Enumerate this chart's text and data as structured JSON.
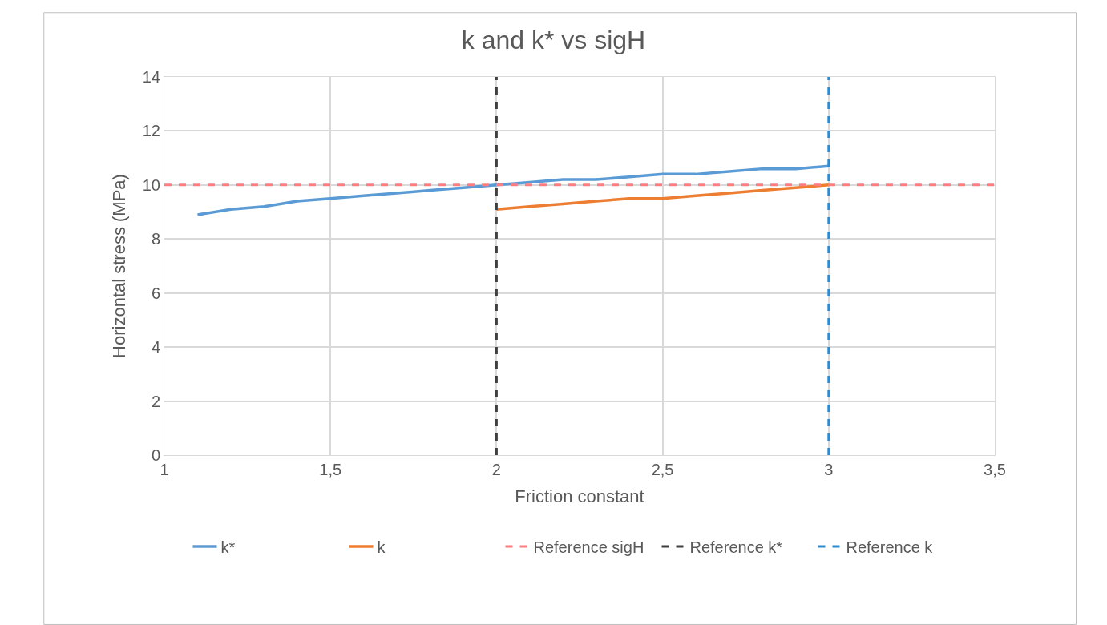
{
  "chart_data": {
    "type": "line",
    "title": "k and k* vs sigH",
    "xlabel": "Friction constant",
    "ylabel": "Horizontal stress (MPa)",
    "series": [
      {
        "name": "k*",
        "color": "#5b9bd5",
        "x": [
          1.1,
          1.2,
          1.3,
          1.4,
          1.5,
          1.6,
          1.7,
          1.8,
          1.9,
          2.0,
          2.1,
          2.2,
          2.3,
          2.4,
          2.5,
          2.6,
          2.7,
          2.8,
          2.9,
          3.0
        ],
        "values": [
          8.9,
          9.1,
          9.2,
          9.4,
          9.5,
          9.6,
          9.7,
          9.8,
          9.9,
          10.0,
          10.1,
          10.2,
          10.2,
          10.3,
          10.4,
          10.4,
          10.5,
          10.6,
          10.6,
          10.7
        ]
      },
      {
        "name": "k",
        "color": "#ed7d31",
        "x": [
          2.0,
          2.1,
          2.2,
          2.3,
          2.4,
          2.5,
          2.6,
          2.7,
          2.8,
          2.9,
          3.0
        ],
        "values": [
          9.1,
          9.2,
          9.3,
          9.4,
          9.5,
          9.5,
          9.6,
          9.7,
          9.8,
          9.9,
          10.0
        ]
      }
    ],
    "ref_lines": [
      {
        "axis": "y",
        "value": 10,
        "label": "Reference sigH",
        "color": "#ff7c80",
        "line_style": "dashed"
      },
      {
        "axis": "x",
        "value": 2,
        "label": "Reference k*",
        "color": "#404040",
        "line_style": "dashed"
      },
      {
        "axis": "x",
        "value": 3,
        "label": "Reference k",
        "color": "#2e8bd0",
        "line_style": "dashed"
      }
    ],
    "xlim": [
      1,
      3.5
    ],
    "xticks": [
      {
        "value": 1,
        "label": "1"
      },
      {
        "value": 1.5,
        "label": "1,5"
      },
      {
        "value": 2,
        "label": "2"
      },
      {
        "value": 2.5,
        "label": "2,5"
      },
      {
        "value": 3,
        "label": "3"
      },
      {
        "value": 3.5,
        "label": "3,5"
      }
    ],
    "ylim": [
      0,
      14
    ],
    "yticks": [
      0,
      2,
      4,
      6,
      8,
      10,
      12,
      14
    ],
    "grid": true,
    "legend": "bottom",
    "line_style": "solid",
    "marker": "none"
  }
}
